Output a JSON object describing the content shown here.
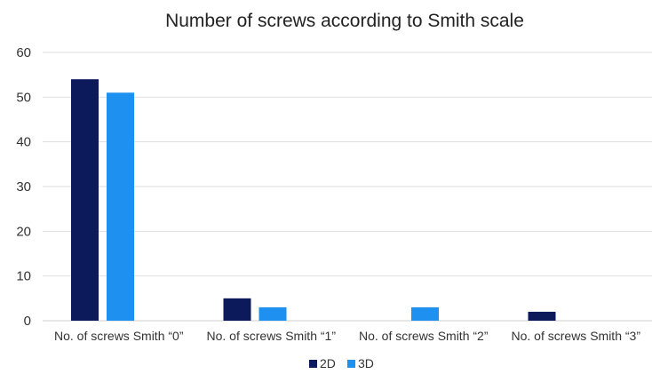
{
  "chart_data": {
    "type": "bar",
    "title": "Number of screws according to Smith scale",
    "categories": [
      "No. of screws Smith “0”",
      "No. of screws Smith “1”",
      "No. of screws Smith “2”",
      "No. of screws Smith “3”"
    ],
    "series": [
      {
        "name": "2D",
        "color": "#0c1a5c",
        "values": [
          54,
          5,
          0,
          2
        ]
      },
      {
        "name": "3D",
        "color": "#1e90f0",
        "values": [
          51,
          3,
          3,
          0
        ]
      }
    ],
    "ylim": [
      0,
      60
    ],
    "yticks": [
      0,
      10,
      20,
      30,
      40,
      50,
      60
    ],
    "grid": true,
    "legend_position": "bottom"
  }
}
